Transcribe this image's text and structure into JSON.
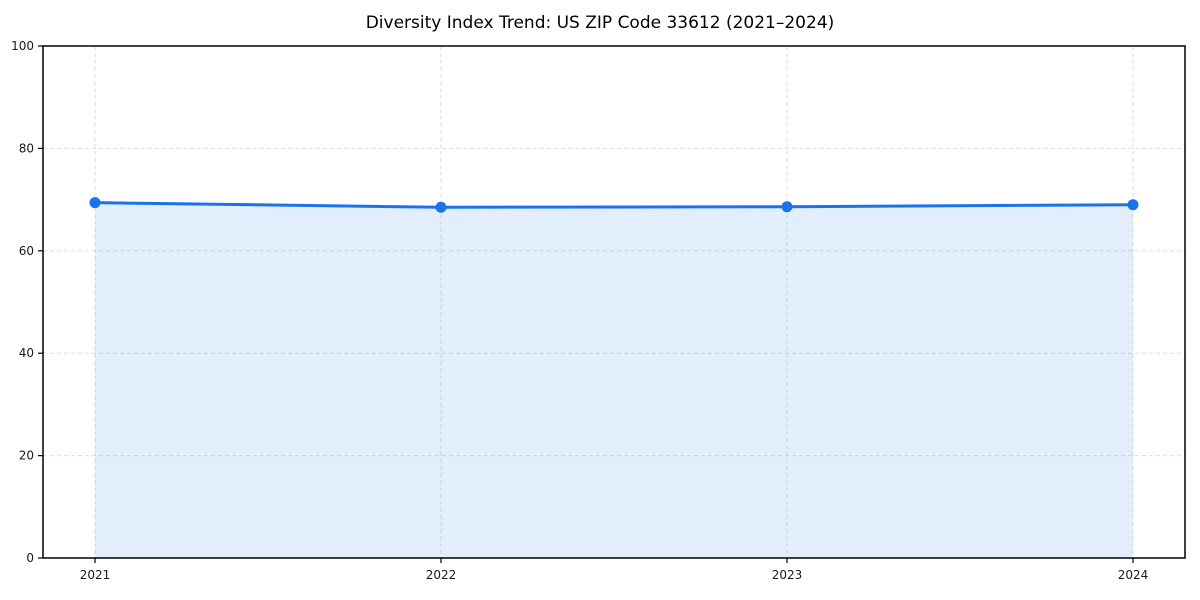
{
  "chart_data": {
    "type": "area",
    "title": "Diversity Index Trend: US ZIP Code 33612 (2021–2024)",
    "categories": [
      "2021",
      "2022",
      "2023",
      "2024"
    ],
    "x": [
      2021,
      2022,
      2023,
      2024
    ],
    "series": [
      {
        "name": "Diversity Index",
        "values": [
          69.4,
          68.5,
          68.6,
          69.0
        ]
      }
    ],
    "xlabel": "",
    "ylabel": "",
    "ylim": [
      0,
      100
    ],
    "yticks": [
      0,
      20,
      40,
      60,
      80,
      100
    ],
    "grid": true,
    "grid_style": "dashed",
    "legend": false,
    "marker": "circle",
    "colors": {
      "line": "#1a73e8",
      "marker": "#1a73e8",
      "fill": "#1a73e8",
      "fill_opacity": 0.12,
      "grid": "#dedede",
      "axis": "#000000",
      "tick_text": "#1a1a1a",
      "title_text": "#000000",
      "background": "#ffffff"
    }
  }
}
